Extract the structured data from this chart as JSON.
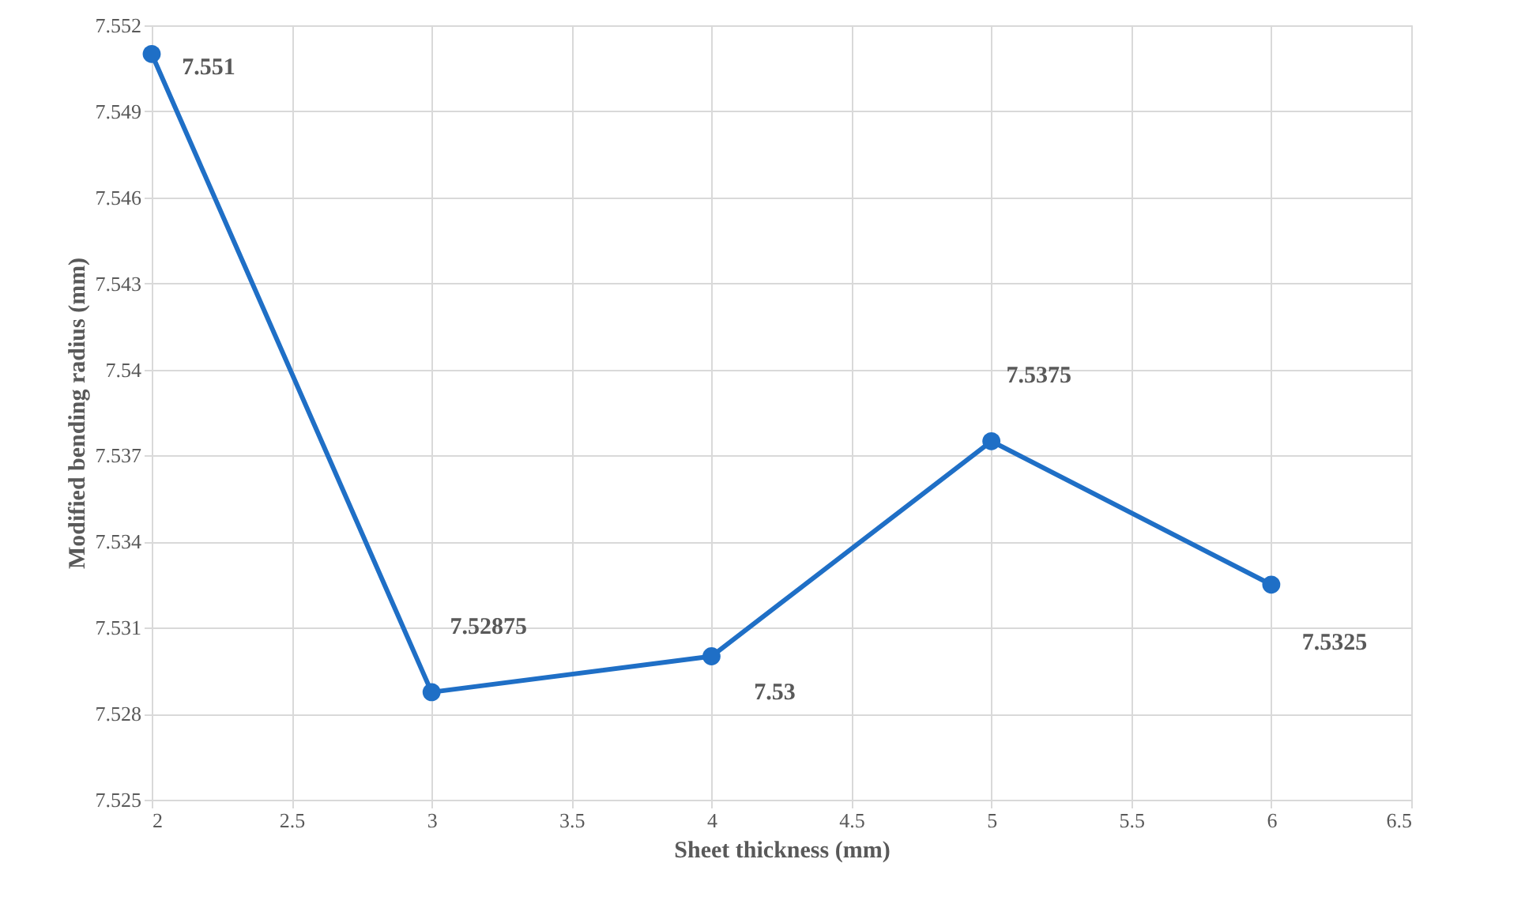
{
  "chart_data": {
    "type": "line",
    "xlabel": "Sheet thickness (mm)",
    "ylabel": "Modified bending radius (mm)",
    "x": [
      2,
      3,
      4,
      5,
      6
    ],
    "series": [
      {
        "color": "#1f6fc6",
        "values": [
          7.551,
          7.52875,
          7.53,
          7.5375,
          7.5325
        ]
      }
    ],
    "xlim": [
      2,
      6.5
    ],
    "xticks": [
      2,
      2.5,
      3,
      3.5,
      4,
      4.5,
      5,
      5.5,
      6,
      6.5
    ],
    "ylim": [
      7.525,
      7.552
    ],
    "yticks": [
      7.525,
      7.528,
      7.531,
      7.534,
      7.537,
      7.54,
      7.543,
      7.546,
      7.549,
      7.552
    ],
    "grid": true,
    "marker": "circle",
    "line_style": "solid",
    "data_labels": true
  }
}
